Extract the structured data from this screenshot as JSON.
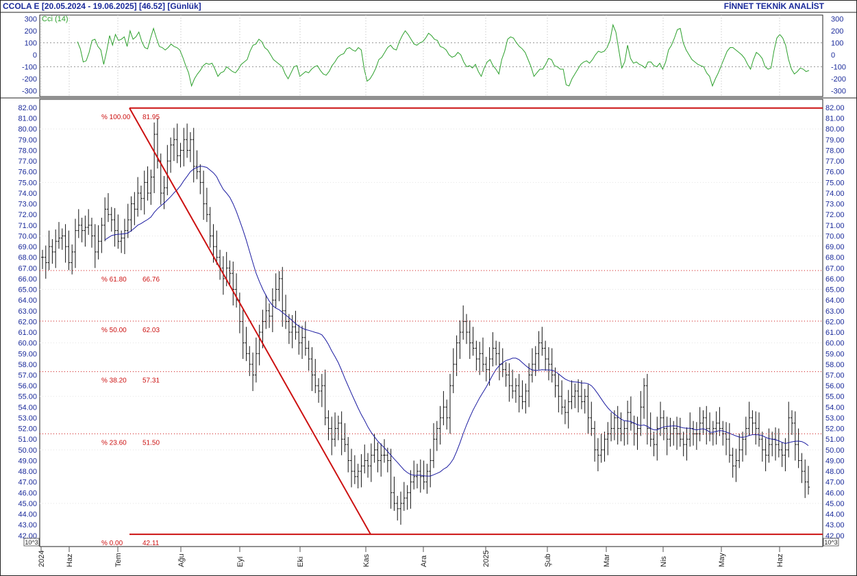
{
  "header": {
    "title": "CCOLA E  [20.05.2024 - 19.06.2025]  [46.52]  [Günlük]",
    "brand": "FİNNET TEKNİK ANALİST"
  },
  "chart_data": [
    {
      "type": "line",
      "title": "",
      "legend": "Cci (14)",
      "ylim": [
        -300,
        300
      ],
      "yticks": [
        300,
        200,
        100,
        0,
        -100,
        -200,
        -300
      ],
      "gridlines": [
        100,
        -100
      ],
      "series": [
        {
          "name": "Cci (14)",
          "color": "#2ca02c",
          "values": [
            110,
            50,
            -60,
            -50,
            20,
            120,
            130,
            70,
            40,
            -80,
            30,
            160,
            80,
            170,
            120,
            130,
            150,
            70,
            200,
            130,
            150,
            190,
            110,
            60,
            50,
            140,
            220,
            140,
            70,
            60,
            40,
            60,
            90,
            70,
            60,
            40,
            -20,
            -90,
            -150,
            -260,
            -200,
            -160,
            -130,
            -90,
            -70,
            -80,
            -70,
            -120,
            -180,
            -150,
            -140,
            -100,
            -120,
            -140,
            -150,
            -120,
            -80,
            -60,
            -40,
            30,
            80,
            90,
            130,
            110,
            60,
            40,
            0,
            -40,
            -60,
            -80,
            -100,
            -160,
            -200,
            -150,
            -100,
            -90,
            -180,
            -160,
            -140,
            -150,
            -120,
            -100,
            -90,
            -130,
            -160,
            -170,
            -140,
            -90,
            -60,
            -20,
            0,
            10,
            50,
            60,
            40,
            30,
            60,
            40,
            -120,
            -220,
            -200,
            -160,
            -110,
            -40,
            -20,
            20,
            60,
            80,
            50,
            40,
            110,
            160,
            200,
            170,
            130,
            90,
            80,
            100,
            110,
            140,
            180,
            160,
            130,
            120,
            70,
            60,
            40,
            0,
            -20,
            -10,
            20,
            0,
            -60,
            -100,
            -90,
            -110,
            -80,
            -140,
            -180,
            -110,
            -60,
            -40,
            -90,
            -120,
            -160,
            -40,
            30,
            130,
            150,
            140,
            100,
            70,
            50,
            20,
            -40,
            -100,
            -180,
            -150,
            -120,
            -120,
            -80,
            -30,
            -40,
            -90,
            -100,
            -120,
            -120,
            -250,
            -260,
            -200,
            -160,
            -120,
            -80,
            -60,
            -50,
            -70,
            -40,
            0,
            30,
            20,
            30,
            60,
            120,
            250,
            190,
            40,
            -110,
            -60,
            80,
            -30,
            -70,
            -60,
            -80,
            -90,
            -110,
            -60,
            -60,
            -90,
            -100,
            -70,
            -120,
            -60,
            40,
            80,
            140,
            210,
            220,
            100,
            40,
            0,
            -40,
            -60,
            -80,
            -90,
            -100,
            -150,
            -180,
            -260,
            -200,
            -150,
            -90,
            -30,
            30,
            60,
            60,
            40,
            20,
            0,
            -30,
            -80,
            -120,
            -40,
            20,
            0,
            -30,
            -100,
            -120,
            -110,
            30,
            140,
            170,
            140,
            80,
            -40,
            -120,
            -160,
            -140,
            -110,
            -120,
            -140,
            -130
          ]
        }
      ]
    },
    {
      "type": "bar",
      "title": "",
      "xlabel": "",
      "ylabel": "",
      "ylim": [
        42,
        82
      ],
      "yticks": [
        "82.00",
        "81.00",
        "80.00",
        "79.00",
        "78.00",
        "77.00",
        "76.00",
        "75.00",
        "74.00",
        "73.00",
        "72.00",
        "71.00",
        "70.00",
        "69.00",
        "68.00",
        "67.00",
        "66.00",
        "65.00",
        "64.00",
        "63.00",
        "62.00",
        "61.00",
        "60.00",
        "59.00",
        "58.00",
        "57.00",
        "56.00",
        "55.00",
        "54.00",
        "53.00",
        "52.00",
        "51.00",
        "50.00",
        "49.00",
        "48.00",
        "47.00",
        "46.00",
        "45.00",
        "44.00",
        "43.00",
        "42.00"
      ],
      "scale_label": "10^3",
      "xticks": [
        "2024",
        "Haz",
        "Tem",
        "Ağu",
        "Eyl",
        "Eki",
        "Kas",
        "Ara",
        "2025",
        "Şub",
        "Mar",
        "Nis",
        "May",
        "Haz"
      ],
      "last_close": 46.52,
      "fibonacci": [
        {
          "label": "% 100.00",
          "value": "81.95",
          "level": 81.95
        },
        {
          "label": "% 61.80",
          "value": "66.76",
          "level": 66.76
        },
        {
          "label": "% 50.00",
          "value": "62.03",
          "level": 62.03
        },
        {
          "label": "% 38.20",
          "value": "57.31",
          "level": 57.31
        },
        {
          "label": "% 23.60",
          "value": "51.50",
          "level": 51.5
        },
        {
          "label": "% 0.00",
          "value": "42.11",
          "level": 42.11
        }
      ],
      "colors": {
        "bars": "#111111",
        "ma": "#1a1aa0",
        "fib": "#cc1111",
        "grid": "#999999",
        "axis": "#1a2a9a",
        "cci": "#2ca02c"
      },
      "closes": [
        68,
        67.5,
        69,
        68.5,
        69.5,
        69.8,
        70,
        69,
        67.5,
        68.5,
        70.5,
        71,
        70.5,
        70.8,
        71,
        70,
        68.5,
        69.5,
        71,
        72.5,
        72,
        71.5,
        70.5,
        69.5,
        69.8,
        70.5,
        71.5,
        73,
        72.5,
        74,
        73.5,
        75,
        74,
        75.5,
        79.5,
        77,
        74,
        74.5,
        77,
        78.5,
        79,
        77.5,
        78,
        79,
        78,
        79,
        76.5,
        76,
        75,
        73,
        72,
        70,
        69,
        68,
        67,
        66,
        67,
        66.5,
        65,
        64,
        62,
        60,
        59,
        58,
        57,
        59,
        61,
        62,
        63,
        62.5,
        64,
        65,
        66,
        63,
        62,
        61,
        61.5,
        61,
        60,
        60.5,
        59.5,
        58.5,
        57,
        56,
        55.5,
        56,
        53,
        52,
        51,
        52,
        52.5,
        51,
        50.5,
        49,
        48,
        47.5,
        48,
        48.5,
        49,
        48.5,
        49.5,
        50,
        49,
        49.5,
        49.5,
        49,
        46,
        45,
        44.5,
        45,
        45.5,
        46,
        47,
        47.5,
        48,
        47.5,
        47,
        48,
        49,
        51,
        52,
        53,
        54,
        53,
        56,
        58,
        60,
        61,
        62,
        61,
        60,
        59.5,
        58.5,
        59,
        58,
        57.5,
        58.5,
        59.5,
        59,
        58,
        57.5,
        57,
        56,
        55.5,
        56,
        55,
        54.5,
        55.5,
        57,
        58,
        59,
        60,
        59.5,
        58.5,
        58,
        57,
        56,
        55,
        54,
        53.5,
        54.5,
        55,
        55.5,
        55,
        54.5,
        55,
        53,
        52,
        50,
        49.5,
        50,
        51,
        51.5,
        52,
        53,
        52,
        51.5,
        52,
        53.5,
        52.5,
        51.5,
        52,
        54,
        56,
        52,
        51,
        50.5,
        52,
        53,
        52,
        51,
        51.5,
        52,
        51.5,
        51,
        50.5,
        51,
        52,
        51.5,
        51.5,
        52.5,
        53,
        52,
        51.5,
        52,
        52.5,
        52,
        51.5,
        51,
        49.5,
        48.5,
        49,
        50,
        51,
        52,
        53,
        52.5,
        52,
        51,
        50,
        49.5,
        50.5,
        51,
        50.5,
        50,
        49.5,
        50,
        53,
        52.5,
        50.5,
        49,
        48,
        47,
        46.52
      ]
    }
  ]
}
